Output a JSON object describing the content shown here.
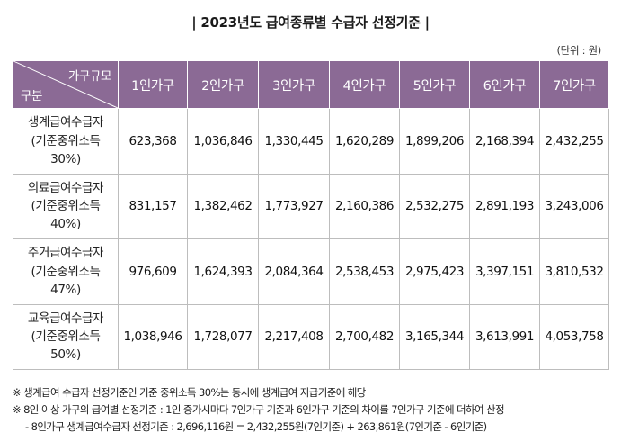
{
  "title": "| 2023년도 급여종류별 수급자 선정기준 |",
  "unit": "(단위 : 원)",
  "table": {
    "corner_top": "가구규모",
    "corner_bottom": "구분",
    "columns": [
      "1인가구",
      "2인가구",
      "3인가구",
      "4인가구",
      "5인가구",
      "6인가구",
      "7인가구"
    ],
    "rows": [
      {
        "label": [
          "생계급여수급자",
          "(기준중위소득",
          "30%)"
        ],
        "values": [
          "623,368",
          "1,036,846",
          "1,330,445",
          "1,620,289",
          "1,899,206",
          "2,168,394",
          "2,432,255"
        ]
      },
      {
        "label": [
          "의료급여수급자",
          "(기준중위소득",
          "40%)"
        ],
        "values": [
          "831,157",
          "1,382,462",
          "1,773,927",
          "2,160,386",
          "2,532,275",
          "2,891,193",
          "3,243,006"
        ]
      },
      {
        "label": [
          "주거급여수급자",
          "(기준중위소득",
          "47%)"
        ],
        "values": [
          "976,609",
          "1,624,393",
          "2,084,364",
          "2,538,453",
          "2,975,423",
          "3,397,151",
          "3,810,532"
        ]
      },
      {
        "label": [
          "교육급여수급자",
          "(기준중위소득",
          "50%)"
        ],
        "values": [
          "1,038,946",
          "1,728,077",
          "2,217,408",
          "2,700,482",
          "3,165,344",
          "3,613,991",
          "4,053,758"
        ]
      }
    ]
  },
  "notes": [
    "※ 생계급여 수급자 선정기준인 기준 중위소득 30%는 동시에 생계급여 지급기준에 해당",
    "※ 8인 이상 가구의 급여별 선정기준 : 1인 증가시마다 7인가구 기준과 6인가구 기준의 차이를 7인가구 기준에 더하여 산정",
    "- 8인가구 생계급여수급자 선정기준 : 2,696,116원 = 2,432,255원(7인기준) + 263,861원(7인기준 - 6인기준)"
  ],
  "colors": {
    "header_bg": "#8b6a95",
    "header_text": "#ffffff",
    "border": "#bdbdbd"
  }
}
